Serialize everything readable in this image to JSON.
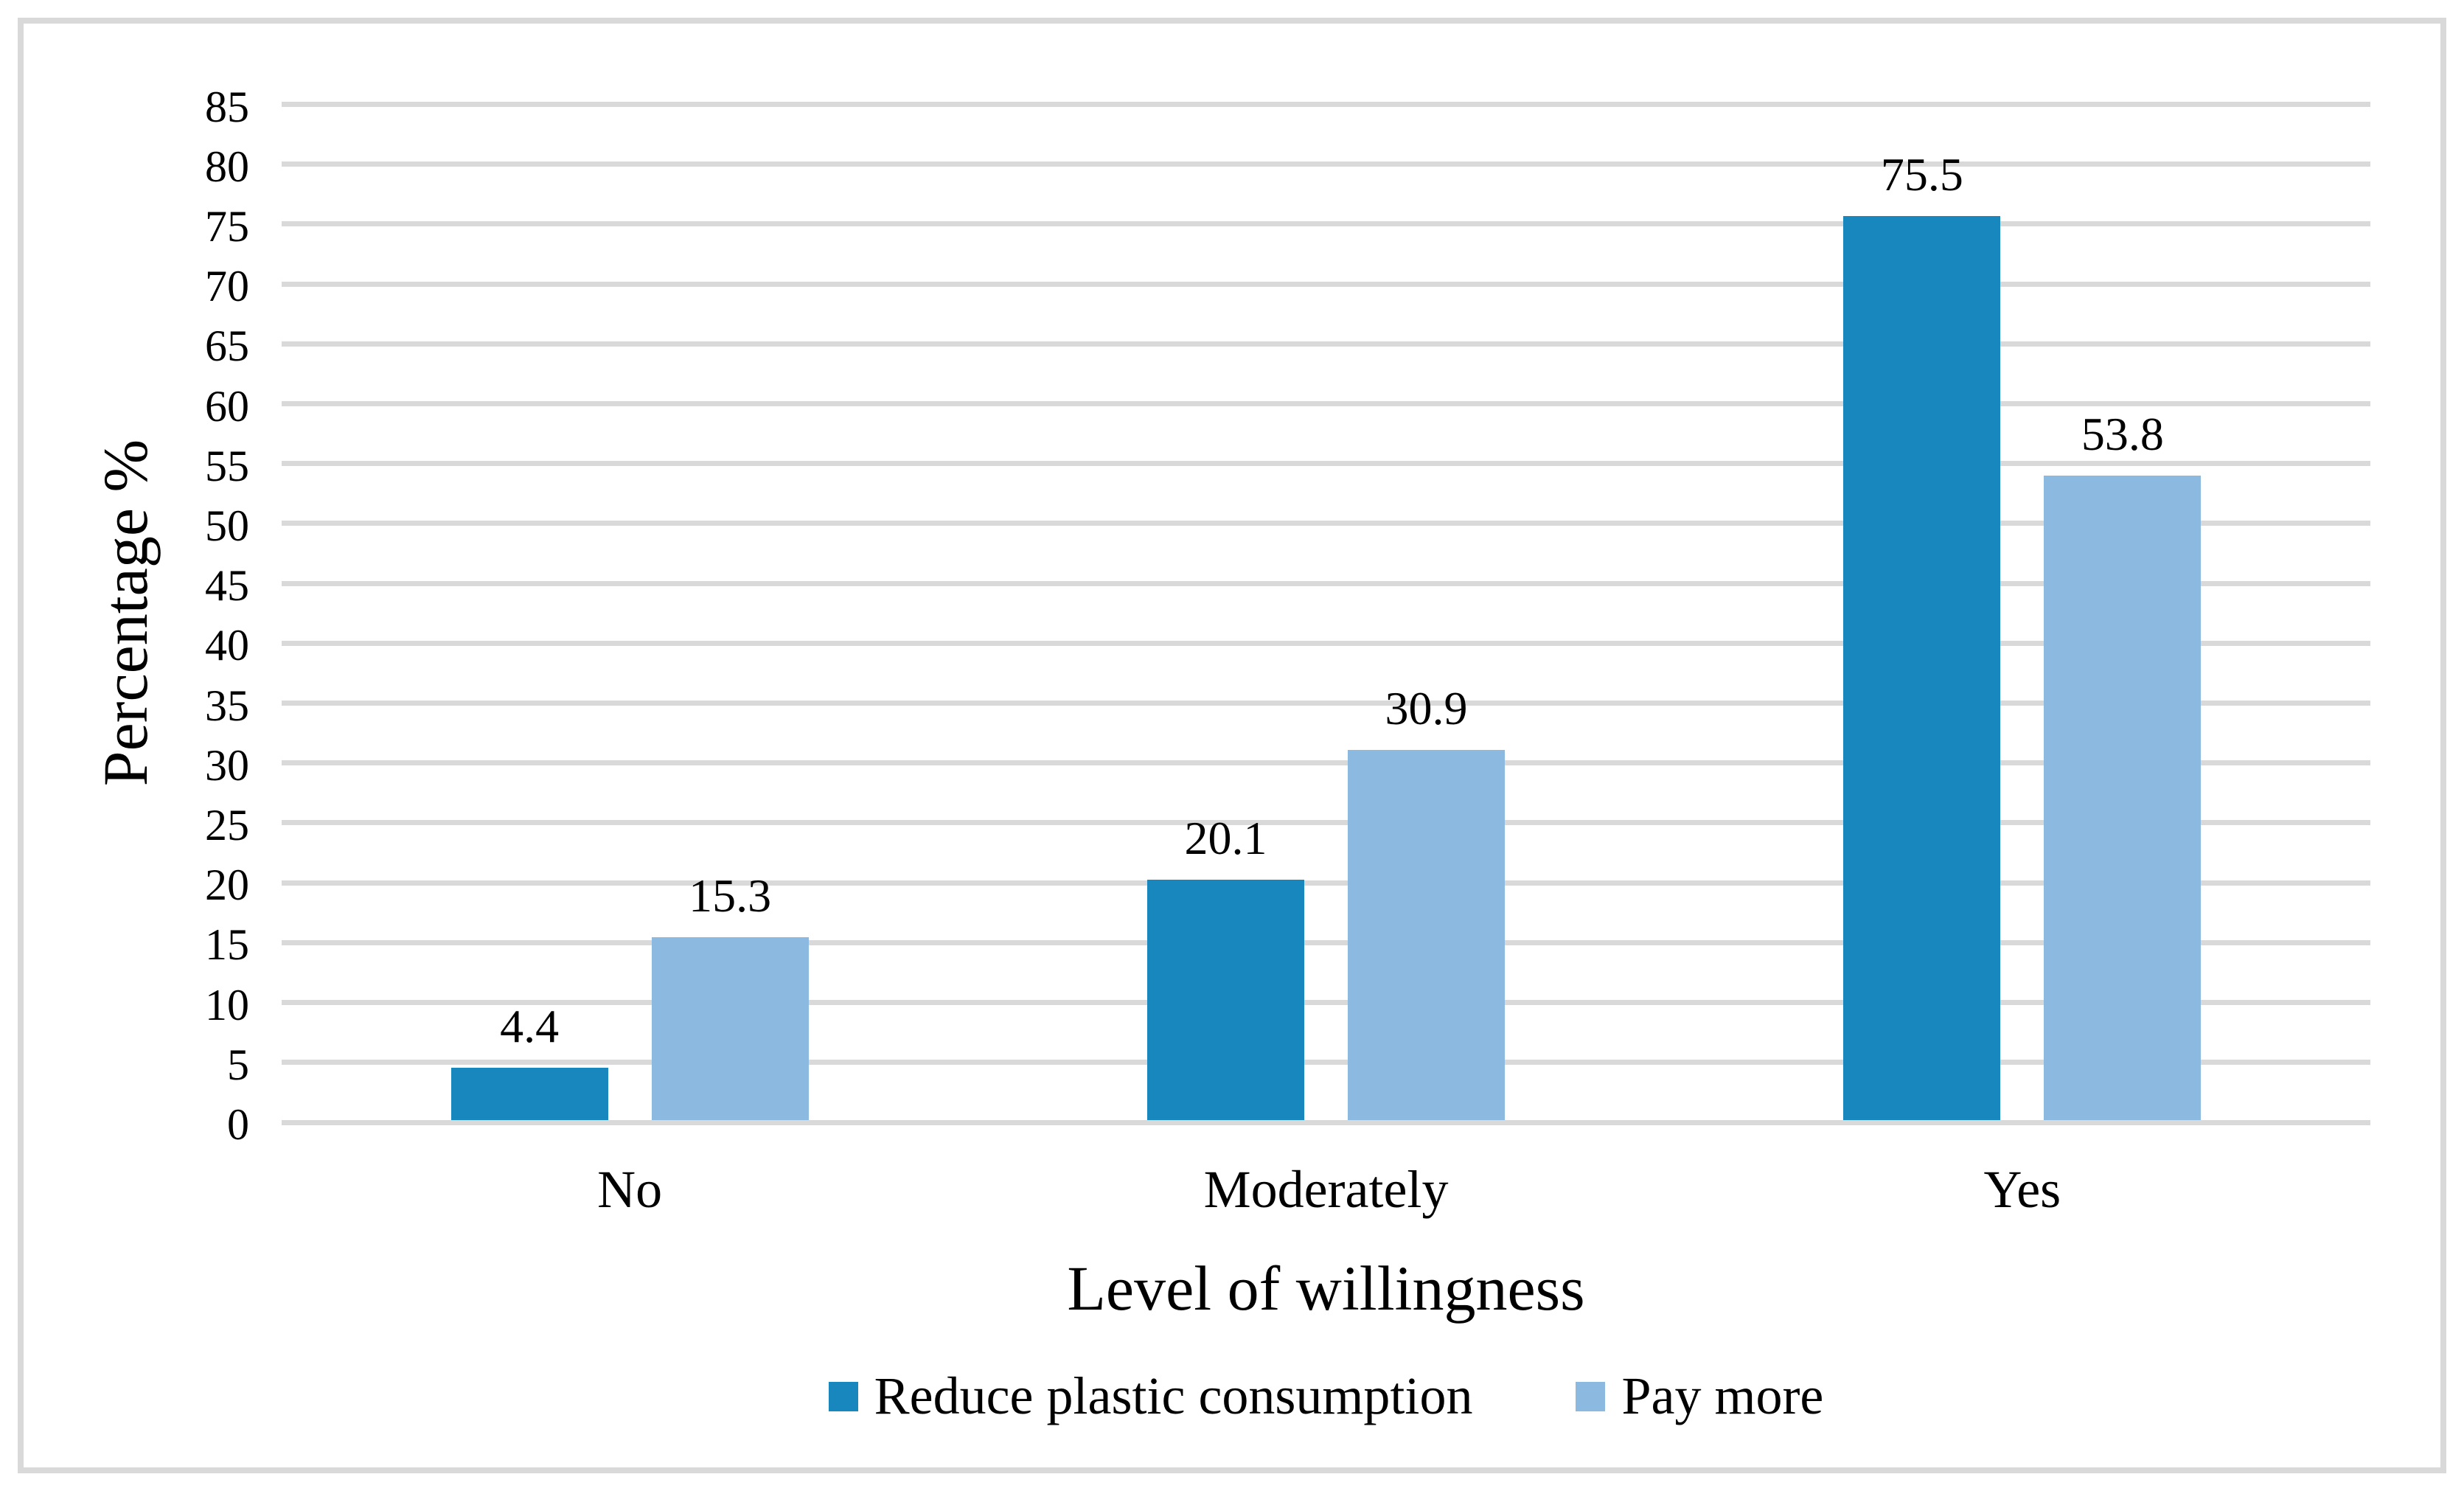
{
  "chart_data": {
    "type": "bar",
    "categories": [
      "No",
      "Moderately",
      "Yes"
    ],
    "series": [
      {
        "name": "Reduce plastic consumption",
        "color": "#1787BE",
        "values": [
          4.4,
          20.1,
          75.5
        ],
        "labels": [
          "4.4",
          "20.1",
          "75.5"
        ]
      },
      {
        "name": "Pay more",
        "color": "#8CB9E0",
        "values": [
          15.3,
          30.9,
          53.8
        ],
        "labels": [
          "15.3",
          "30.9",
          "53.8"
        ]
      }
    ],
    "title": "",
    "xlabel": "Level of willingness",
    "ylabel": "Percentage %",
    "ylim": [
      0,
      85
    ],
    "ytick_step": 5,
    "yticks": [
      0,
      5,
      10,
      15,
      20,
      25,
      30,
      35,
      40,
      45,
      50,
      55,
      60,
      65,
      70,
      75,
      80,
      85
    ],
    "grid": true,
    "legend_position": "bottom",
    "colors": {
      "gridline": "#D9D9D9",
      "frame_border": "#D9D9D9",
      "text": "#000000",
      "background": "#FFFFFF"
    }
  }
}
